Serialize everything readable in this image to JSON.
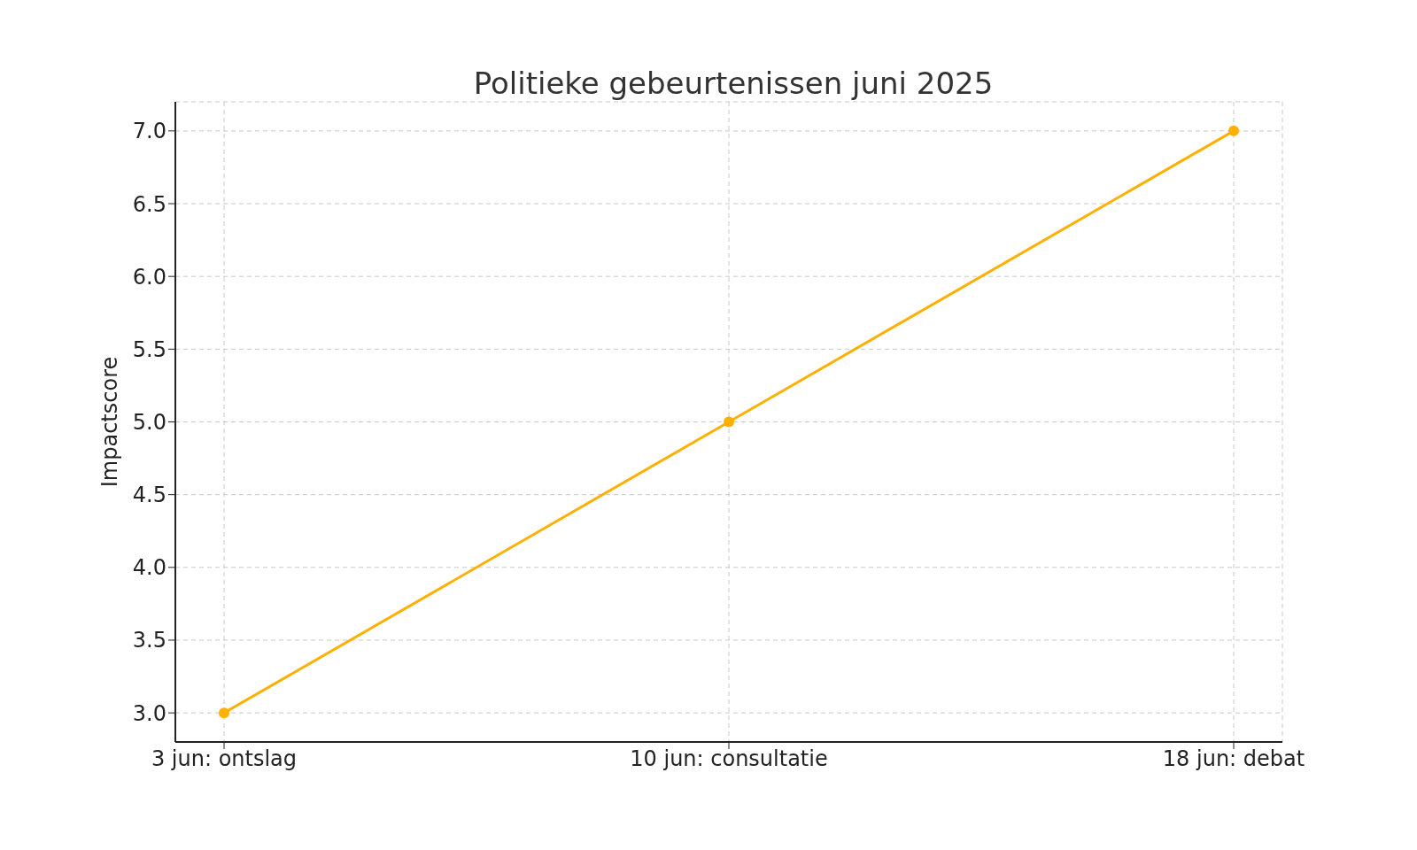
{
  "chart_data": {
    "type": "line",
    "title": "Politieke gebeurtenissen juni 2025",
    "ylabel": "Impactscore",
    "categories": [
      "3 jun: ontslag",
      "10 jun: consultatie",
      "18 jun: debat"
    ],
    "series": [
      {
        "color": "#ffb000",
        "values": [
          3,
          5,
          7
        ]
      }
    ],
    "ylim": [
      2.8,
      7.2
    ],
    "yticks": [
      {
        "value": 3,
        "label": "3.0"
      },
      {
        "value": 3.5,
        "label": "3.5"
      },
      {
        "value": 4,
        "label": "4.0"
      },
      {
        "value": 4.5,
        "label": "4.5"
      },
      {
        "value": 5,
        "label": "5.0"
      },
      {
        "value": 5.5,
        "label": "5.5"
      },
      {
        "value": 6,
        "label": "6.0"
      },
      {
        "value": 6.5,
        "label": "6.5"
      },
      {
        "value": 7,
        "label": "7.0"
      }
    ],
    "grid": true,
    "legend": false,
    "marker": "circle",
    "line_style": "solid"
  }
}
